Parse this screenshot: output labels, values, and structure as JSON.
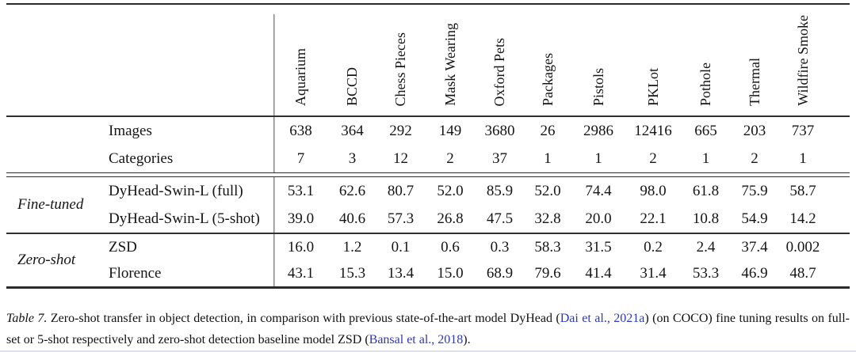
{
  "table": {
    "columns": [
      "Aquarium",
      "BCCD",
      "Chess Pieces",
      "Mask Wearing",
      "Oxford Pets",
      "Packages",
      "Pistols",
      "PKLot",
      "Pothole",
      "Thermal",
      "Wildfire Smoke"
    ],
    "meta_rows": [
      {
        "label": "Images",
        "values": [
          "638",
          "364",
          "292",
          "149",
          "3680",
          "26",
          "2986",
          "12416",
          "665",
          "203",
          "737"
        ]
      },
      {
        "label": "Categories",
        "values": [
          "7",
          "3",
          "12",
          "2",
          "37",
          "1",
          "1",
          "2",
          "1",
          "2",
          "1"
        ]
      }
    ],
    "groups": [
      {
        "label": "Fine-tuned",
        "rows": [
          {
            "label": "DyHead-Swin-L (full)",
            "values": [
              "53.1",
              "62.6",
              "80.7",
              "52.0",
              "85.9",
              "52.0",
              "74.4",
              "98.0",
              "61.8",
              "75.9",
              "58.7"
            ]
          },
          {
            "label": "DyHead-Swin-L (5-shot)",
            "values": [
              "39.0",
              "40.6",
              "57.3",
              "26.8",
              "47.5",
              "32.8",
              "20.0",
              "22.1",
              "10.8",
              "54.9",
              "14.2"
            ]
          }
        ]
      },
      {
        "label": "Zero-shot",
        "rows": [
          {
            "label": "ZSD",
            "values": [
              "16.0",
              "1.2",
              "0.1",
              "0.6",
              "0.3",
              "58.3",
              "31.5",
              "0.2",
              "2.4",
              "37.4",
              "0.002"
            ]
          },
          {
            "label": "Florence",
            "values": [
              "43.1",
              "15.3",
              "13.4",
              "15.0",
              "68.9",
              "79.6",
              "41.4",
              "31.4",
              "53.3",
              "46.9",
              "48.7"
            ]
          }
        ]
      }
    ]
  },
  "caption": {
    "label": "Table 7.",
    "segments": [
      {
        "text": " Zero-shot transfer in object detection, in comparison with previous state-of-the-art model DyHead (",
        "type": "text"
      },
      {
        "text": "Dai et al., 2021a",
        "type": "link"
      },
      {
        "text": ") (on COCO) fine tuning results on full-set or 5-shot respectively and zero-shot detection baseline model ZSD (",
        "type": "text"
      },
      {
        "text": "Bansal et al., 2018",
        "type": "link"
      },
      {
        "text": ").",
        "type": "text"
      }
    ]
  },
  "colors": {
    "link": "#2b38c0",
    "rule": "#2f2f2f",
    "vertical_rule": "#8a8a8a",
    "bottom_edge": "#dbe1ea"
  }
}
